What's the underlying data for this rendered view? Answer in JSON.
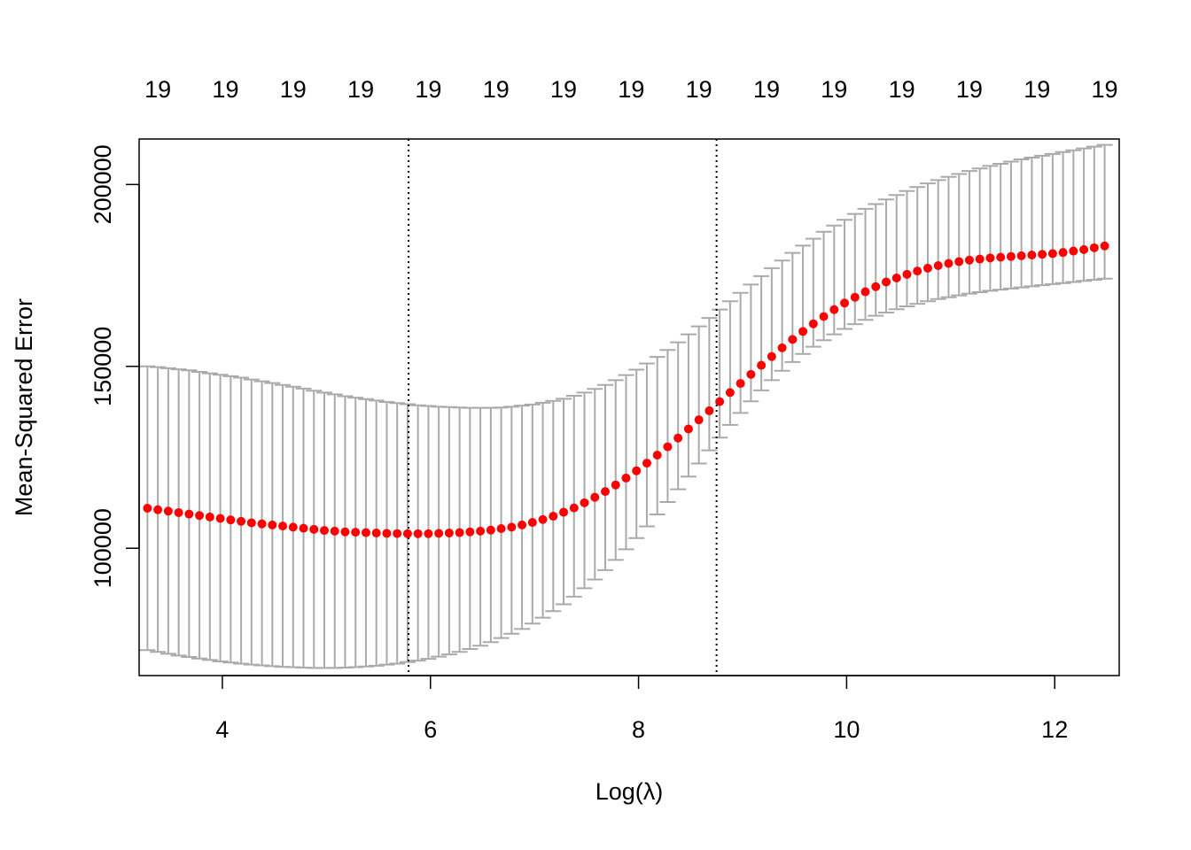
{
  "chart_data": {
    "type": "scatter",
    "xlabel": "Log(λ)",
    "ylabel": "Mean-Squared Error",
    "xlim": [
      3.2,
      12.62
    ],
    "ylim": [
      65000,
      212500
    ],
    "x_ticks": [
      4,
      6,
      8,
      10,
      12
    ],
    "y_ticks": [
      100000,
      150000,
      200000
    ],
    "top_axis_labels": [
      "19",
      "19",
      "19",
      "19",
      "19",
      "19",
      "19",
      "19",
      "19",
      "19",
      "19",
      "19",
      "19",
      "19",
      "19"
    ],
    "top_axis_positions": [
      3.38,
      4.03,
      4.68,
      5.33,
      5.98,
      6.63,
      7.28,
      7.93,
      8.58,
      9.23,
      9.88,
      10.53,
      11.18,
      11.83,
      12.48
    ],
    "lambda_min_log": 5.79,
    "lambda_1se_log": 8.75,
    "grid": false,
    "legend": "none",
    "colors": {
      "points": "#ff0000",
      "error_bars": "#aaaaaa",
      "reference_lines": "#000000"
    },
    "x": [
      3.28,
      3.38,
      3.48,
      3.58,
      3.68,
      3.78,
      3.88,
      3.98,
      4.08,
      4.18,
      4.28,
      4.38,
      4.48,
      4.58,
      4.68,
      4.78,
      4.88,
      4.98,
      5.08,
      5.18,
      5.28,
      5.38,
      5.48,
      5.58,
      5.68,
      5.78,
      5.88,
      5.98,
      6.08,
      6.18,
      6.28,
      6.38,
      6.48,
      6.58,
      6.68,
      6.78,
      6.88,
      6.98,
      7.08,
      7.18,
      7.28,
      7.38,
      7.48,
      7.58,
      7.68,
      7.78,
      7.88,
      7.98,
      8.08,
      8.18,
      8.28,
      8.38,
      8.48,
      8.58,
      8.68,
      8.78,
      8.88,
      8.98,
      9.08,
      9.18,
      9.28,
      9.38,
      9.48,
      9.58,
      9.68,
      9.78,
      9.88,
      9.98,
      10.08,
      10.18,
      10.28,
      10.38,
      10.48,
      10.58,
      10.68,
      10.78,
      10.88,
      10.98,
      11.08,
      11.18,
      11.28,
      11.38,
      11.48,
      11.58,
      11.68,
      11.78,
      11.88,
      11.98,
      12.08,
      12.18,
      12.28,
      12.38,
      12.48
    ],
    "mse": [
      111000,
      110600,
      110200,
      109800,
      109400,
      109000,
      108600,
      108200,
      107800,
      107400,
      107000,
      106700,
      106400,
      106100,
      105800,
      105500,
      105200,
      104900,
      104700,
      104500,
      104400,
      104300,
      104200,
      104100,
      104050,
      104000,
      104000,
      104000,
      104100,
      104200,
      104300,
      104500,
      104700,
      105000,
      105400,
      105800,
      106400,
      107100,
      107900,
      108800,
      109900,
      111100,
      112500,
      114000,
      115600,
      117400,
      119300,
      121300,
      123400,
      125600,
      127900,
      130300,
      132800,
      135300,
      137800,
      140300,
      142800,
      145300,
      147800,
      150300,
      152700,
      155100,
      157400,
      159600,
      161700,
      163700,
      165600,
      167400,
      169000,
      170500,
      171900,
      173200,
      174300,
      175300,
      176200,
      177000,
      177700,
      178300,
      178800,
      179200,
      179500,
      179800,
      180000,
      180200,
      180400,
      180600,
      180800,
      181000,
      181300,
      181700,
      182100,
      182600,
      183100
    ],
    "cv_upper": [
      150000,
      149800,
      149500,
      149200,
      148900,
      148500,
      148100,
      147700,
      147300,
      146900,
      146400,
      145900,
      145400,
      144900,
      144400,
      143900,
      143300,
      142800,
      142300,
      141800,
      141400,
      141000,
      140600,
      140200,
      139900,
      139600,
      139300,
      139100,
      138900,
      138800,
      138700,
      138600,
      138600,
      138600,
      138700,
      138900,
      139200,
      139500,
      140000,
      140500,
      141100,
      141900,
      142800,
      143800,
      144900,
      146200,
      147600,
      149100,
      150800,
      152600,
      154500,
      156600,
      158800,
      161000,
      163300,
      165600,
      167900,
      170200,
      172500,
      174800,
      177000,
      179100,
      181200,
      183200,
      185100,
      187000,
      188700,
      190300,
      191900,
      193300,
      194600,
      195900,
      197100,
      198200,
      199300,
      200300,
      201200,
      202100,
      202900,
      203700,
      204400,
      205100,
      205700,
      206300,
      206900,
      207400,
      207900,
      208400,
      208900,
      209400,
      209900,
      210400,
      210900
    ],
    "cv_lower": [
      72000,
      71500,
      71000,
      70500,
      70100,
      69700,
      69300,
      68900,
      68600,
      68300,
      68000,
      67800,
      67600,
      67400,
      67300,
      67200,
      67100,
      67100,
      67100,
      67200,
      67300,
      67500,
      67700,
      68000,
      68300,
      68700,
      69100,
      69600,
      70200,
      70800,
      71500,
      72300,
      73200,
      74200,
      75300,
      76500,
      77800,
      79300,
      80900,
      82700,
      84600,
      86700,
      89000,
      91400,
      94000,
      96800,
      99700,
      102800,
      106000,
      109300,
      112700,
      116200,
      119700,
      123300,
      126900,
      130400,
      133900,
      137200,
      140400,
      143400,
      146200,
      148800,
      151200,
      153400,
      155400,
      157200,
      158800,
      160300,
      161600,
      162800,
      163900,
      164800,
      165700,
      166500,
      167200,
      167900,
      168500,
      169000,
      169500,
      170000,
      170400,
      170800,
      171100,
      171400,
      171700,
      172000,
      172300,
      172600,
      172900,
      173200,
      173500,
      173800,
      174100
    ]
  }
}
